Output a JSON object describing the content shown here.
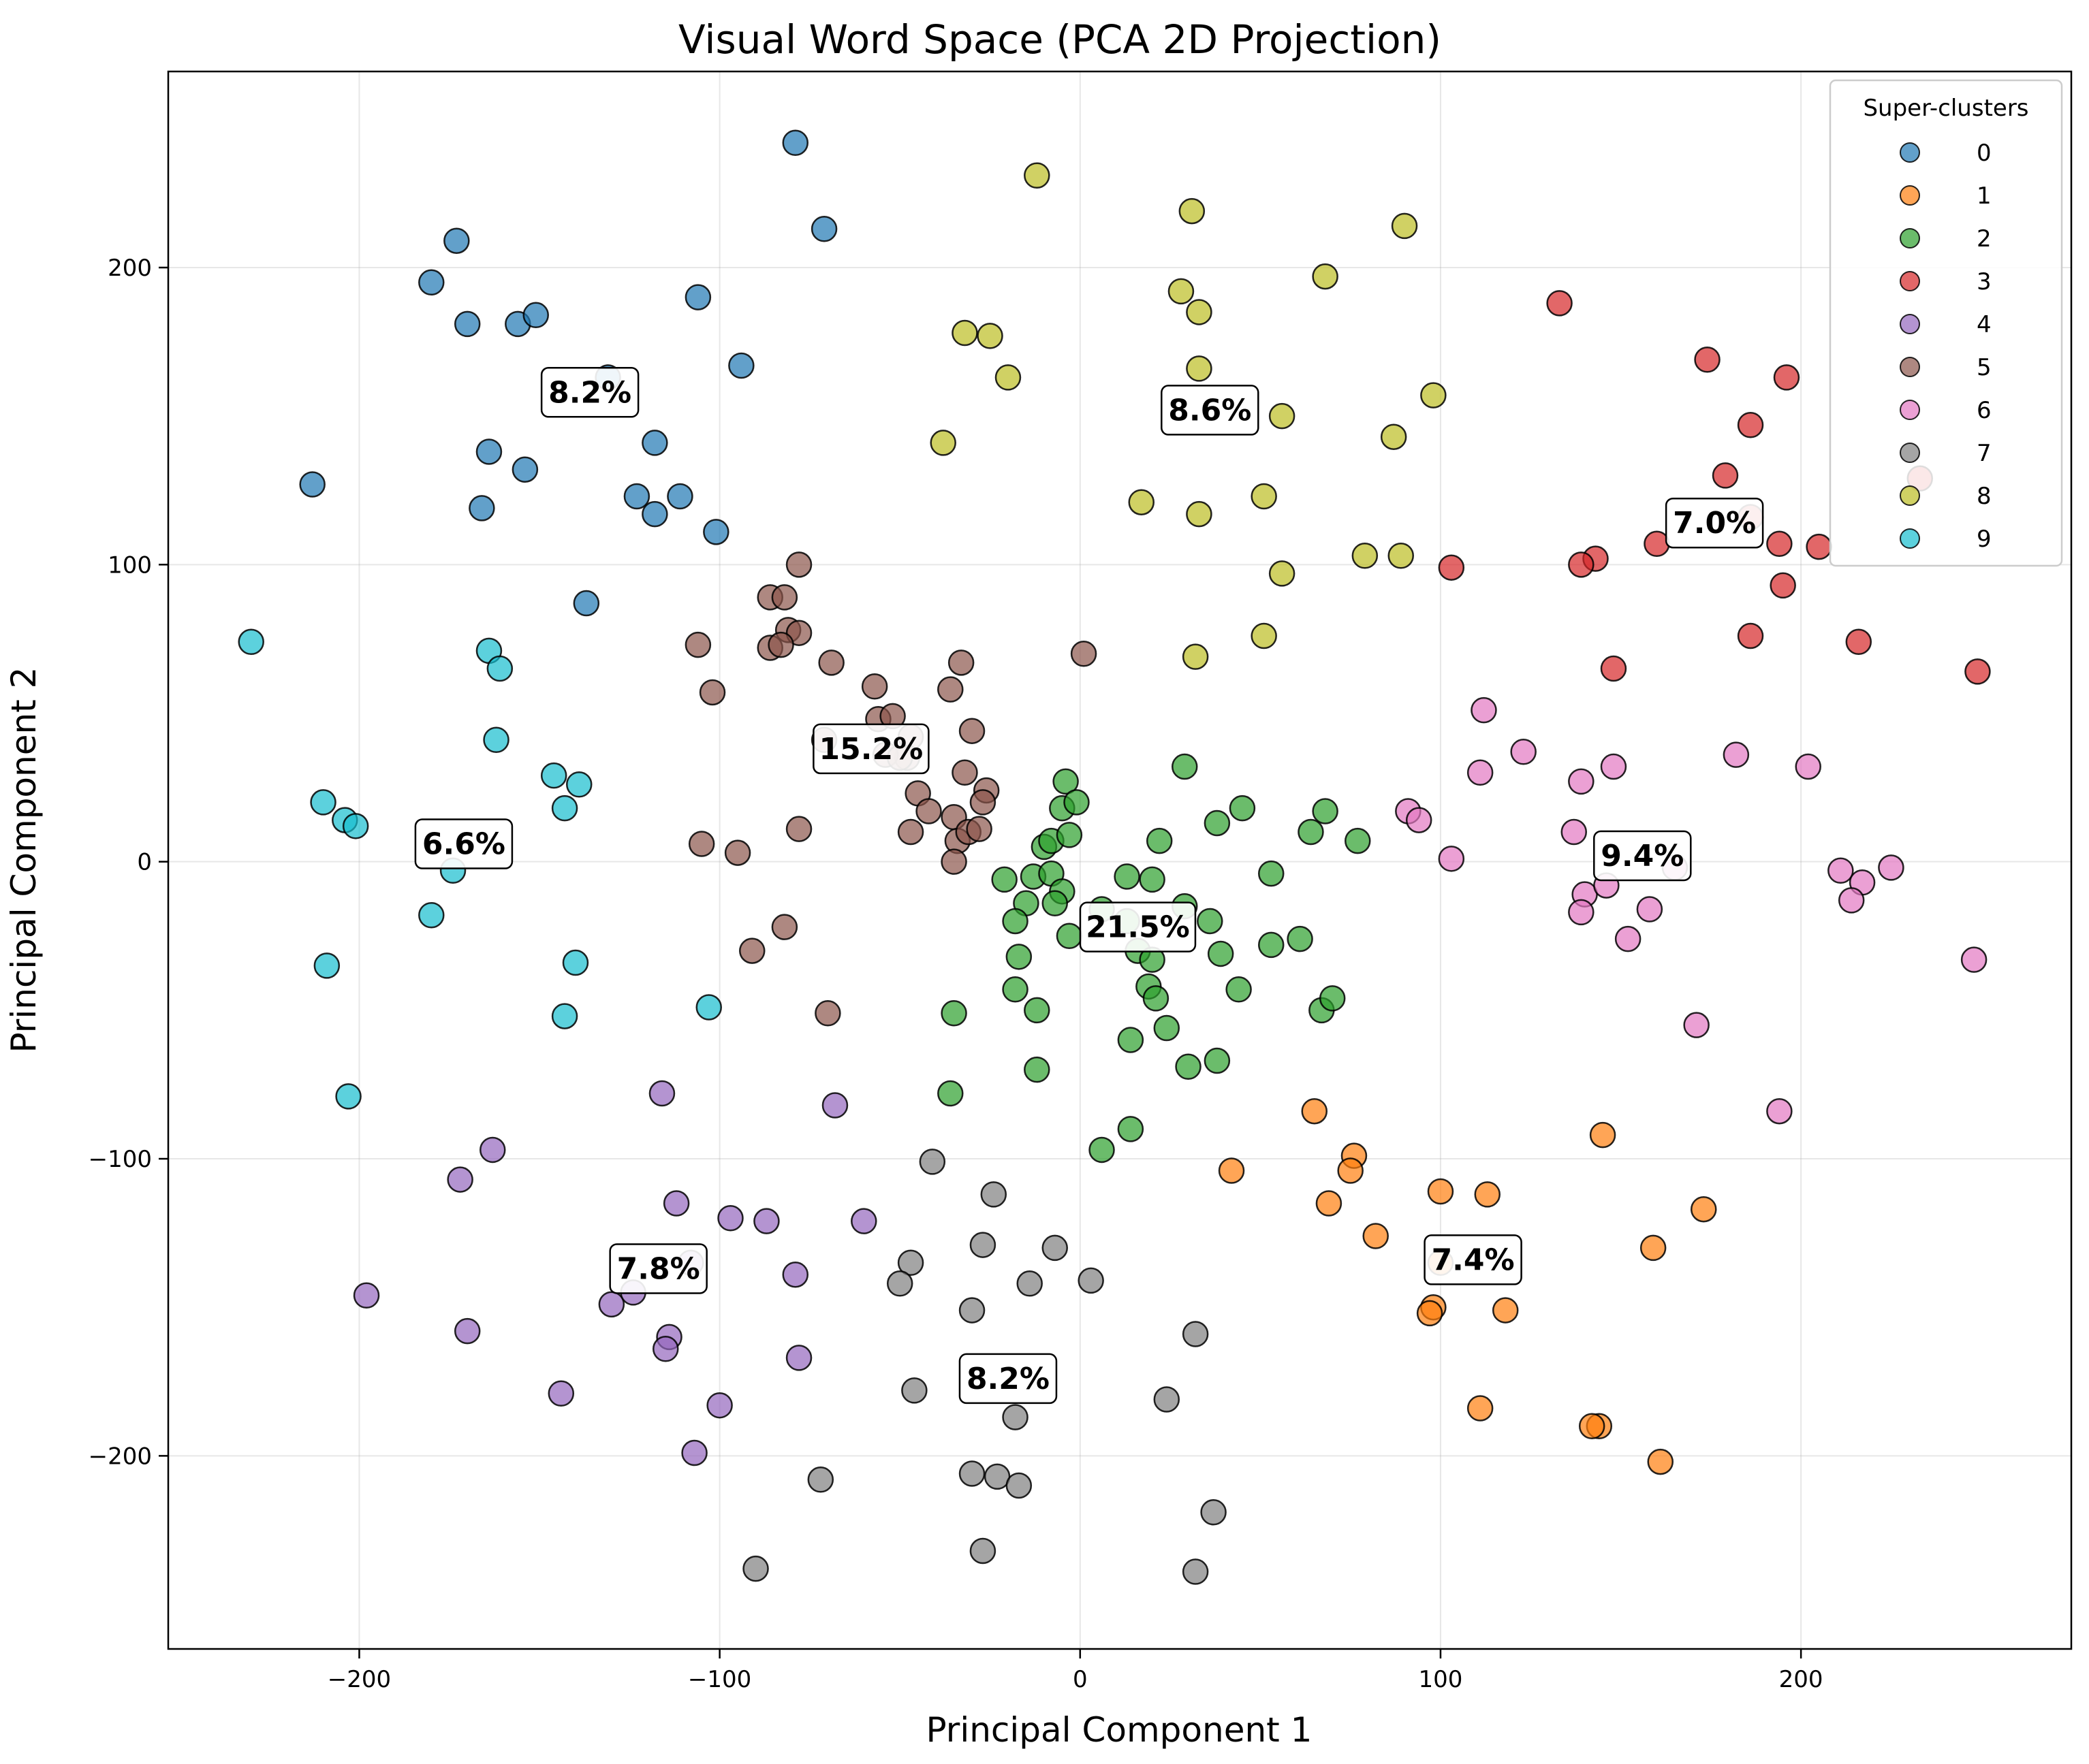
{
  "chart_data": {
    "type": "scatter",
    "title": "Visual Word Space (PCA 2D Projection)",
    "xlabel": "Principal Component 1",
    "ylabel": "Principal Component 2",
    "xlim": [
      -253,
      275
    ],
    "ylim": [
      -265,
      266
    ],
    "x_ticks": [
      -200,
      -100,
      0,
      100,
      200
    ],
    "y_ticks": [
      -200,
      -100,
      0,
      100,
      200
    ],
    "x_tick_labels": [
      "−200",
      "−100",
      "0",
      "100",
      "200"
    ],
    "y_tick_labels": [
      "−200",
      "−100",
      "0",
      "100",
      "200"
    ],
    "grid": true,
    "legend": {
      "title": "Super-clusters",
      "placement": "top-right"
    },
    "series": [
      {
        "name": "0",
        "color": "#1f77b4",
        "points": [
          [
            -213,
            127
          ],
          [
            -173,
            209
          ],
          [
            -180,
            195
          ],
          [
            -170,
            181
          ],
          [
            -156,
            181
          ],
          [
            -151,
            184
          ],
          [
            -106,
            190
          ],
          [
            -94,
            167
          ],
          [
            -79,
            242
          ],
          [
            -71,
            213
          ],
          [
            -131,
            163
          ],
          [
            -118,
            141
          ],
          [
            -164,
            138
          ],
          [
            -154,
            132
          ],
          [
            -166,
            119
          ],
          [
            -123,
            123
          ],
          [
            -118,
            117
          ],
          [
            -111,
            123
          ],
          [
            -101,
            111
          ],
          [
            -137,
            87
          ]
        ]
      },
      {
        "name": "1",
        "color": "#ff7f0e",
        "points": [
          [
            65,
            -84
          ],
          [
            76,
            -99
          ],
          [
            75,
            -104
          ],
          [
            69,
            -115
          ],
          [
            42,
            -104
          ],
          [
            82,
            -126
          ],
          [
            100,
            -111
          ],
          [
            113,
            -112
          ],
          [
            145,
            -92
          ],
          [
            173,
            -117
          ],
          [
            159,
            -130
          ],
          [
            98,
            -150
          ],
          [
            97,
            -152
          ],
          [
            118,
            -151
          ],
          [
            111,
            -184
          ],
          [
            144,
            -190
          ],
          [
            142,
            -190
          ],
          [
            161,
            -202
          ],
          [
            100,
            -135
          ]
        ]
      },
      {
        "name": "2",
        "color": "#2ca02c",
        "points": [
          [
            -4,
            27
          ],
          [
            -5,
            18
          ],
          [
            -1,
            20
          ],
          [
            -10,
            5
          ],
          [
            -8,
            7
          ],
          [
            -3,
            9
          ],
          [
            -13,
            -5
          ],
          [
            -21,
            -6
          ],
          [
            -8,
            -4
          ],
          [
            -5,
            -10
          ],
          [
            -7,
            -14
          ],
          [
            -15,
            -14
          ],
          [
            -18,
            -20
          ],
          [
            -3,
            -25
          ],
          [
            6,
            -16
          ],
          [
            13,
            -5
          ],
          [
            20,
            -6
          ],
          [
            22,
            7
          ],
          [
            29,
            32
          ],
          [
            38,
            13
          ],
          [
            45,
            18
          ],
          [
            53,
            -4
          ],
          [
            64,
            10
          ],
          [
            68,
            17
          ],
          [
            77,
            7
          ],
          [
            29,
            -15
          ],
          [
            13,
            -20
          ],
          [
            16,
            -30
          ],
          [
            20,
            -33
          ],
          [
            19,
            -42
          ],
          [
            21,
            -46
          ],
          [
            36,
            -20
          ],
          [
            39,
            -31
          ],
          [
            44,
            -43
          ],
          [
            53,
            -28
          ],
          [
            61,
            -26
          ],
          [
            67,
            -50
          ],
          [
            70,
            -46
          ],
          [
            24,
            -56
          ],
          [
            14,
            -60
          ],
          [
            30,
            -69
          ],
          [
            38,
            -67
          ],
          [
            -17,
            -32
          ],
          [
            -18,
            -43
          ],
          [
            -12,
            -50
          ],
          [
            -35,
            -51
          ],
          [
            -12,
            -70
          ],
          [
            -36,
            -78
          ],
          [
            6,
            -97
          ],
          [
            14,
            -90
          ]
        ]
      },
      {
        "name": "3",
        "color": "#d62728",
        "points": [
          [
            133,
            188
          ],
          [
            174,
            169
          ],
          [
            196,
            163
          ],
          [
            186,
            147
          ],
          [
            179,
            130
          ],
          [
            186,
            116
          ],
          [
            160,
            107
          ],
          [
            143,
            102
          ],
          [
            139,
            100
          ],
          [
            103,
            99
          ],
          [
            194,
            107
          ],
          [
            205,
            106
          ],
          [
            195,
            93
          ],
          [
            186,
            76
          ],
          [
            148,
            65
          ],
          [
            216,
            74
          ],
          [
            249,
            64
          ],
          [
            233,
            129
          ]
        ]
      },
      {
        "name": "4",
        "color": "#9467bd",
        "points": [
          [
            -116,
            -78
          ],
          [
            -163,
            -97
          ],
          [
            -172,
            -107
          ],
          [
            -68,
            -82
          ],
          [
            -112,
            -115
          ],
          [
            -97,
            -120
          ],
          [
            -87,
            -121
          ],
          [
            -60,
            -121
          ],
          [
            -79,
            -139
          ],
          [
            -198,
            -146
          ],
          [
            -130,
            -149
          ],
          [
            -124,
            -145
          ],
          [
            -170,
            -158
          ],
          [
            -114,
            -160
          ],
          [
            -115,
            -164
          ],
          [
            -78,
            -167
          ],
          [
            -144,
            -179
          ],
          [
            -100,
            -183
          ],
          [
            -107,
            -199
          ],
          [
            -108,
            -135
          ]
        ]
      },
      {
        "name": "5",
        "color": "#8c564b",
        "points": [
          [
            -78,
            100
          ],
          [
            -86,
            89
          ],
          [
            -82,
            89
          ],
          [
            -81,
            78
          ],
          [
            -78,
            77
          ],
          [
            -86,
            72
          ],
          [
            -83,
            73
          ],
          [
            -106,
            73
          ],
          [
            -102,
            57
          ],
          [
            -69,
            67
          ],
          [
            -57,
            59
          ],
          [
            -36,
            58
          ],
          [
            -33,
            67
          ],
          [
            1,
            70
          ],
          [
            -71,
            41
          ],
          [
            -56,
            48
          ],
          [
            -52,
            49
          ],
          [
            -47,
            42
          ],
          [
            -48,
            35
          ],
          [
            -54,
            36
          ],
          [
            -30,
            44
          ],
          [
            -32,
            30
          ],
          [
            -45,
            23
          ],
          [
            -42,
            17
          ],
          [
            -35,
            15
          ],
          [
            -26,
            24
          ],
          [
            -27,
            20
          ],
          [
            -47,
            10
          ],
          [
            -34,
            7
          ],
          [
            -31,
            10
          ],
          [
            -28,
            11
          ],
          [
            -35,
            0
          ],
          [
            -78,
            11
          ],
          [
            -105,
            6
          ],
          [
            -95,
            3
          ],
          [
            -82,
            -22
          ],
          [
            -91,
            -30
          ],
          [
            -70,
            -51
          ],
          [
            -50,
            35
          ]
        ]
      },
      {
        "name": "6",
        "color": "#e377c2",
        "points": [
          [
            112,
            51
          ],
          [
            123,
            37
          ],
          [
            111,
            30
          ],
          [
            148,
            32
          ],
          [
            139,
            27
          ],
          [
            182,
            36
          ],
          [
            202,
            32
          ],
          [
            91,
            17
          ],
          [
            94,
            14
          ],
          [
            137,
            10
          ],
          [
            103,
            1
          ],
          [
            140,
            -11
          ],
          [
            146,
            -8
          ],
          [
            165,
            -2
          ],
          [
            211,
            -3
          ],
          [
            217,
            -7
          ],
          [
            225,
            -2
          ],
          [
            139,
            -17
          ],
          [
            158,
            -16
          ],
          [
            214,
            -13
          ],
          [
            152,
            -26
          ],
          [
            248,
            -33
          ],
          [
            171,
            -55
          ],
          [
            194,
            -84
          ]
        ]
      },
      {
        "name": "7",
        "color": "#7f7f7f",
        "points": [
          [
            -41,
            -101
          ],
          [
            -24,
            -112
          ],
          [
            -47,
            -135
          ],
          [
            -50,
            -142
          ],
          [
            -27,
            -129
          ],
          [
            -7,
            -130
          ],
          [
            -14,
            -142
          ],
          [
            3,
            -141
          ],
          [
            -30,
            -151
          ],
          [
            32,
            -159
          ],
          [
            -46,
            -178
          ],
          [
            24,
            -181
          ],
          [
            -18,
            -187
          ],
          [
            -72,
            -208
          ],
          [
            -30,
            -206
          ],
          [
            -23,
            -207
          ],
          [
            -17,
            -210
          ],
          [
            37,
            -219
          ],
          [
            -27,
            -232
          ],
          [
            -90,
            -238
          ],
          [
            32,
            -239
          ]
        ]
      },
      {
        "name": "8",
        "color": "#bcbd22",
        "points": [
          [
            -12,
            231
          ],
          [
            31,
            219
          ],
          [
            90,
            214
          ],
          [
            68,
            197
          ],
          [
            28,
            192
          ],
          [
            33,
            185
          ],
          [
            -32,
            178
          ],
          [
            -25,
            177
          ],
          [
            -20,
            163
          ],
          [
            33,
            166
          ],
          [
            98,
            157
          ],
          [
            56,
            150
          ],
          [
            -38,
            141
          ],
          [
            87,
            143
          ],
          [
            17,
            121
          ],
          [
            33,
            117
          ],
          [
            51,
            123
          ],
          [
            79,
            103
          ],
          [
            89,
            103
          ],
          [
            56,
            97
          ],
          [
            51,
            76
          ],
          [
            32,
            69
          ]
        ]
      },
      {
        "name": "9",
        "color": "#17becf",
        "points": [
          [
            -230,
            74
          ],
          [
            -164,
            71
          ],
          [
            -161,
            65
          ],
          [
            -162,
            41
          ],
          [
            -146,
            29
          ],
          [
            -139,
            26
          ],
          [
            -143,
            18
          ],
          [
            -210,
            20
          ],
          [
            -204,
            14
          ],
          [
            -201,
            12
          ],
          [
            -174,
            -3
          ],
          [
            -180,
            -18
          ],
          [
            -209,
            -35
          ],
          [
            -140,
            -34
          ],
          [
            -143,
            -52
          ],
          [
            -103,
            -49
          ],
          [
            -203,
            -79
          ]
        ]
      }
    ],
    "annotations": [
      {
        "text": "8.2%",
        "x": -136,
        "y": 158
      },
      {
        "text": "8.6%",
        "x": 36,
        "y": 152
      },
      {
        "text": "7.0%",
        "x": 176,
        "y": 114
      },
      {
        "text": "15.2%",
        "x": -58,
        "y": 38
      },
      {
        "text": "6.6%",
        "x": -171,
        "y": 6
      },
      {
        "text": "9.4%",
        "x": 156,
        "y": 2
      },
      {
        "text": "21.5%",
        "x": 16,
        "y": -22
      },
      {
        "text": "7.4%",
        "x": 109,
        "y": -134
      },
      {
        "text": "7.8%",
        "x": -117,
        "y": -137
      },
      {
        "text": "8.2%",
        "x": -20,
        "y": -174
      }
    ]
  }
}
